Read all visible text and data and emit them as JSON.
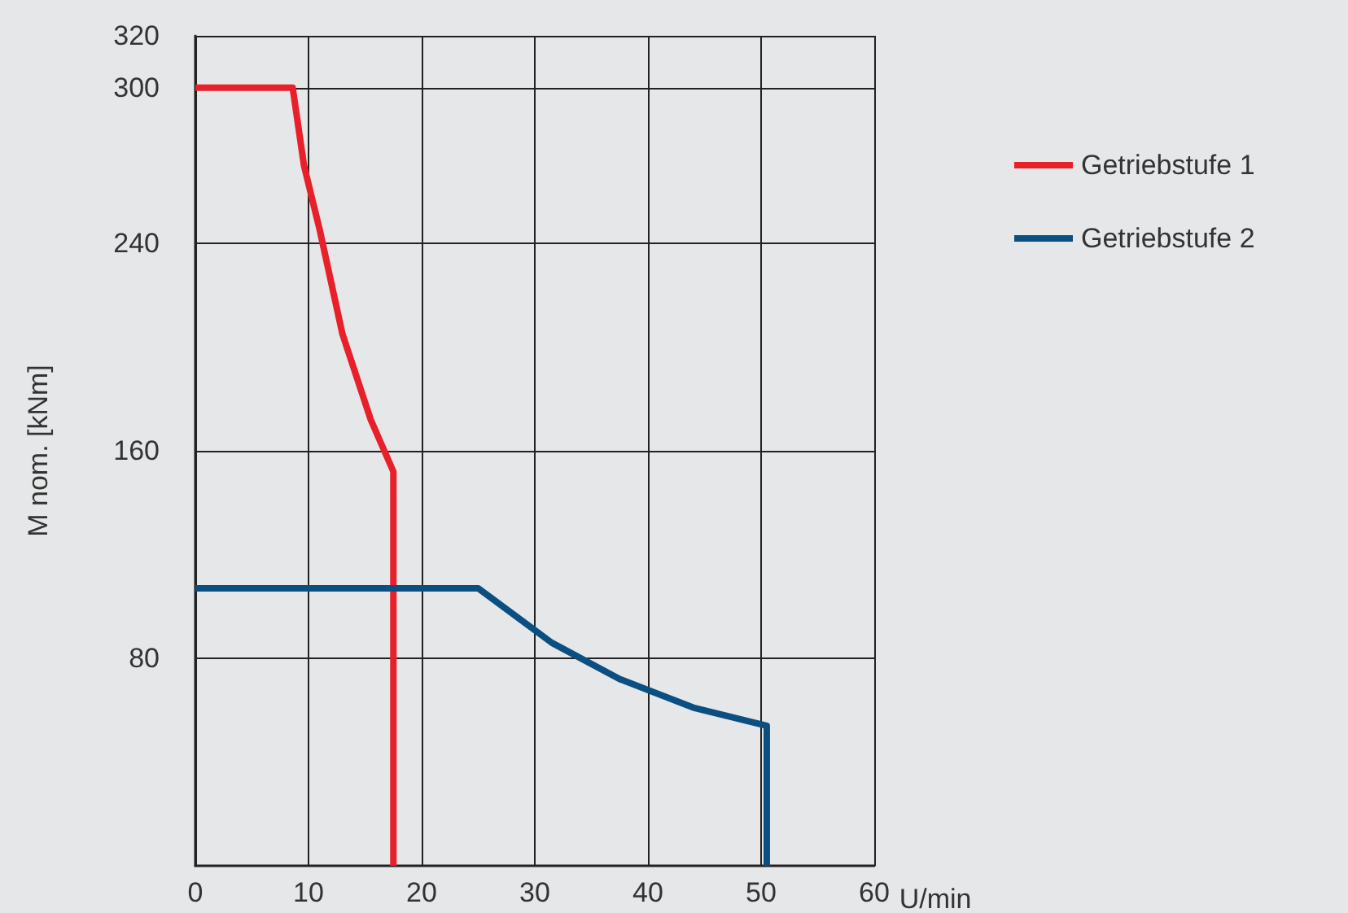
{
  "chart_data": {
    "type": "line",
    "xlabel": "U/min",
    "ylabel": "M nom. [kNm]",
    "xlim": [
      0,
      60
    ],
    "xticks": [
      0,
      10,
      20,
      30,
      40,
      50,
      60
    ],
    "ylim": [
      0,
      320
    ],
    "yticks": [
      80,
      160,
      240,
      300,
      320
    ],
    "grid": true,
    "legend": "right",
    "marker": "none",
    "line_style": "solid",
    "series": [
      {
        "name": "Getriebstufe 1",
        "color": "#e8202a",
        "x": [
          0,
          8.6,
          9.6,
          11,
          13,
          15.5,
          17.5,
          17.5
        ],
        "values": [
          300,
          300,
          270,
          245,
          205,
          172,
          152,
          0
        ]
      },
      {
        "name": "Getriebstufe 2",
        "color": "#0b4f82",
        "x": [
          0,
          25,
          31.5,
          37.5,
          44,
          50.5,
          50.5
        ],
        "values": [
          107,
          107,
          86,
          72,
          61,
          54,
          0
        ]
      }
    ]
  }
}
